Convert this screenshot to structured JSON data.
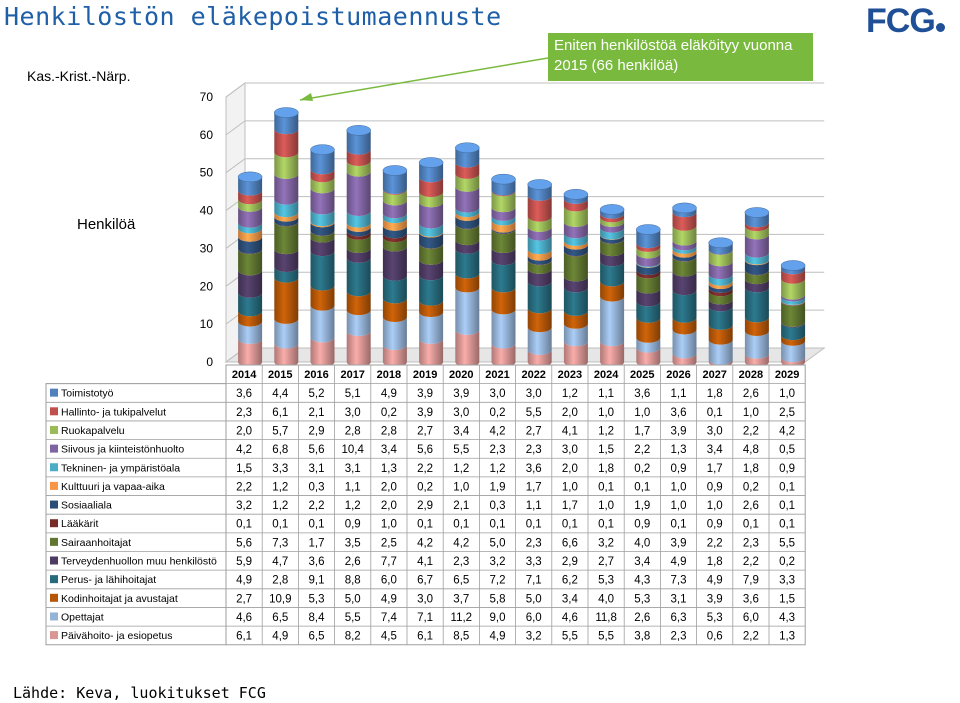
{
  "header": {
    "title": "Henkilöstön eläkepoistumaennuste",
    "logo": "FCG",
    "subtitle": "Kas.-Krist.-Närp.",
    "callout": "Eniten henkilöstöä eläköityy vuonna 2015 (66 henkilöä)",
    "ylabel": "Henkilöä",
    "source": "Lähde: Keva, luokitukset FCG"
  },
  "colors": {
    "title": "#1f5fa8",
    "callout_bg": "#79ba3e",
    "grid": "#bfbfbf"
  },
  "chart_data": {
    "type": "bar",
    "stacked": true,
    "ylim": [
      0,
      70
    ],
    "yticks": [
      0,
      10,
      20,
      30,
      40,
      50,
      60,
      70
    ],
    "ylabel": "Henkilöä",
    "categories": [
      "2014",
      "2015",
      "2016",
      "2017",
      "2018",
      "2019",
      "2020",
      "2021",
      "2022",
      "2023",
      "2024",
      "2025",
      "2026",
      "2027",
      "2028",
      "2029"
    ],
    "series": [
      {
        "name": "Toimistotyö",
        "color": "#4f81bd",
        "values": [
          "3,6",
          "4,4",
          "5,2",
          "5,1",
          "4,9",
          "3,9",
          "3,9",
          "3,0",
          "3,0",
          "1,2",
          "1,1",
          "3,6",
          "1,1",
          "1,8",
          "2,6",
          "1,0"
        ]
      },
      {
        "name": "Hallinto- ja tukipalvelut",
        "color": "#c0504d",
        "values": [
          "2,3",
          "6,1",
          "2,1",
          "3,0",
          "0,2",
          "3,9",
          "3,0",
          "0,2",
          "5,5",
          "2,0",
          "1,0",
          "1,0",
          "3,6",
          "0,1",
          "1,0",
          "2,5"
        ]
      },
      {
        "name": "Ruokapalvelu",
        "color": "#9bbb59",
        "values": [
          "2,0",
          "5,7",
          "2,9",
          "2,8",
          "2,8",
          "2,7",
          "3,4",
          "4,2",
          "2,7",
          "4,1",
          "1,2",
          "1,7",
          "3,9",
          "3,0",
          "2,2",
          "4,2"
        ]
      },
      {
        "name": "Siivous ja kiinteistönhuolto",
        "color": "#8064a2",
        "values": [
          "4,2",
          "6,8",
          "5,6",
          "10,4",
          "3,4",
          "5,6",
          "5,5",
          "2,3",
          "2,3",
          "3,0",
          "1,5",
          "2,2",
          "1,3",
          "3,4",
          "4,8",
          "0,5"
        ]
      },
      {
        "name": "Tekninen- ja ympäristöala",
        "color": "#4bacc6",
        "values": [
          "1,5",
          "3,3",
          "3,1",
          "3,1",
          "1,3",
          "2,2",
          "1,2",
          "1,2",
          "3,6",
          "2,0",
          "1,8",
          "0,2",
          "0,9",
          "1,7",
          "1,8",
          "0,9"
        ]
      },
      {
        "name": "Kulttuuri ja vapaa-aika",
        "color": "#f79646",
        "values": [
          "2,2",
          "1,2",
          "0,3",
          "1,1",
          "2,0",
          "0,2",
          "1,0",
          "1,9",
          "1,7",
          "1,0",
          "0,1",
          "0,1",
          "1,0",
          "0,9",
          "0,2",
          "0,1"
        ]
      },
      {
        "name": "Sosiaaliala",
        "color": "#2c4d75",
        "values": [
          "3,2",
          "1,2",
          "2,2",
          "1,2",
          "2,0",
          "2,9",
          "2,1",
          "0,3",
          "1,1",
          "1,7",
          "1,0",
          "1,9",
          "1,0",
          "1,0",
          "2,6",
          "0,1"
        ]
      },
      {
        "name": "Lääkärit",
        "color": "#772c2a",
        "values": [
          "0,1",
          "0,1",
          "0,1",
          "0,9",
          "1,0",
          "0,1",
          "0,1",
          "0,1",
          "0,1",
          "0,1",
          "0,1",
          "0,9",
          "0,1",
          "0,9",
          "0,1",
          "0,1"
        ]
      },
      {
        "name": "Sairaanhoitajat",
        "color": "#5f7530",
        "values": [
          "5,6",
          "7,3",
          "1,7",
          "3,5",
          "2,5",
          "4,2",
          "4,2",
          "5,0",
          "2,3",
          "6,6",
          "3,2",
          "4,0",
          "3,9",
          "2,2",
          "2,3",
          "5,5"
        ]
      },
      {
        "name": "Terveydenhuollon muu henkilöstö",
        "color": "#4d3b62",
        "values": [
          "5,9",
          "4,7",
          "3,6",
          "2,6",
          "7,7",
          "4,1",
          "2,3",
          "3,2",
          "3,3",
          "2,9",
          "2,7",
          "3,4",
          "4,9",
          "1,8",
          "2,2",
          "0,2"
        ]
      },
      {
        "name": "Perus- ja lähihoitajat",
        "color": "#276a7c",
        "values": [
          "4,9",
          "2,8",
          "9,1",
          "8,8",
          "6,0",
          "6,7",
          "6,5",
          "7,2",
          "7,1",
          "6,2",
          "5,3",
          "4,3",
          "7,3",
          "4,9",
          "7,9",
          "3,3"
        ]
      },
      {
        "name": "Kodinhoitajat ja avustajat",
        "color": "#b65708",
        "values": [
          "2,7",
          "10,9",
          "5,3",
          "5,0",
          "4,9",
          "3,0",
          "3,7",
          "5,8",
          "5,0",
          "3,4",
          "4,0",
          "5,3",
          "3,1",
          "3,9",
          "3,6",
          "1,5"
        ]
      },
      {
        "name": "Opettajat",
        "color": "#95b3d7",
        "values": [
          "4,6",
          "6,5",
          "8,4",
          "5,5",
          "7,4",
          "7,1",
          "11,2",
          "9,0",
          "6,0",
          "4,6",
          "11,8",
          "2,6",
          "6,3",
          "5,3",
          "6,0",
          "4,3"
        ]
      },
      {
        "name": "Päivähoito- ja esiopetus",
        "color": "#d99694",
        "values": [
          "6,1",
          "4,9",
          "6,5",
          "8,2",
          "4,5",
          "6,1",
          "8,5",
          "4,9",
          "3,2",
          "5,5",
          "5,5",
          "3,8",
          "2,3",
          "0,6",
          "2,2",
          "1,3"
        ]
      }
    ]
  }
}
